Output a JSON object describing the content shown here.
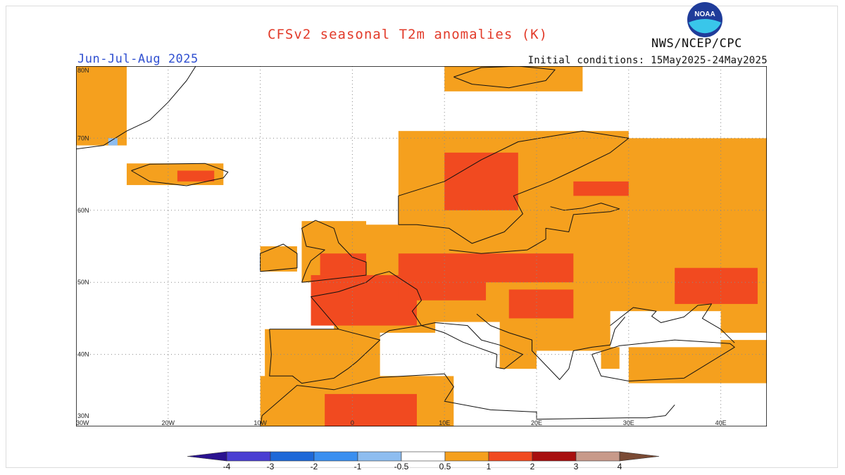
{
  "header": {
    "title": "CFSv2 seasonal T2m anomalies (K)",
    "season": "Jun-Jul-Aug 2025",
    "initial_conditions": "Initial conditions: 15May2025-24May2025",
    "agency": "NWS/NCEP/CPC",
    "logo_text": "NOAA"
  },
  "map": {
    "lon_range": [
      -30,
      45
    ],
    "lat_range": [
      30,
      80
    ],
    "lon_ticks": [
      {
        "value": -30,
        "label": "30W"
      },
      {
        "value": -20,
        "label": "20W"
      },
      {
        "value": -10,
        "label": "10W"
      },
      {
        "value": 0,
        "label": "0"
      },
      {
        "value": 10,
        "label": "10E"
      },
      {
        "value": 20,
        "label": "20E"
      },
      {
        "value": 30,
        "label": "30E"
      },
      {
        "value": 40,
        "label": "40E"
      }
    ],
    "lat_ticks": [
      {
        "value": 30,
        "label": "30N"
      },
      {
        "value": 40,
        "label": "40N"
      },
      {
        "value": 50,
        "label": "50N"
      },
      {
        "value": 60,
        "label": "60N"
      },
      {
        "value": 70,
        "label": "70N"
      },
      {
        "value": 80,
        "label": "80N"
      }
    ],
    "colors": {
      "c05": "#f5a01e",
      "c1": "#f14a20",
      "c2": "#a80f0f",
      "neg05": "#8ebdf0",
      "coast": "#111111",
      "grid": "#8a8a8a"
    },
    "regions_0_5_to_1K": [
      {
        "name": "Greenland",
        "lon": [
          -30,
          -24.5
        ],
        "lat": [
          69,
          80
        ]
      },
      {
        "name": "Iceland",
        "lon": [
          -24.5,
          -14
        ],
        "lat": [
          63.5,
          66.5
        ]
      },
      {
        "name": "Ireland",
        "lon": [
          -10,
          -6
        ],
        "lat": [
          51.5,
          55
        ]
      },
      {
        "name": "Great Britain",
        "lon": [
          -5.5,
          1.5
        ],
        "lat": [
          50,
          58.5
        ]
      },
      {
        "name": "Iberia",
        "lon": [
          -9.5,
          3
        ],
        "lat": [
          36,
          43.5
        ]
      },
      {
        "name": "Central Europe",
        "lon": [
          -2,
          45
        ],
        "lat": [
          43,
          58
        ]
      },
      {
        "name": "Scandinavia",
        "lon": [
          5,
          30
        ],
        "lat": [
          55,
          71
        ]
      },
      {
        "name": "Finland",
        "lon": [
          21,
          32
        ],
        "lat": [
          60,
          70
        ]
      },
      {
        "name": "Western Russia",
        "lon": [
          30,
          45
        ],
        "lat": [
          44,
          70
        ]
      },
      {
        "name": "Balkans",
        "lon": [
          13,
          29
        ],
        "lat": [
          38,
          46
        ]
      },
      {
        "name": "North Africa",
        "lon": [
          -10,
          11
        ],
        "lat": [
          30,
          37
        ]
      },
      {
        "name": "Turkey East",
        "lon": [
          30,
          45
        ],
        "lat": [
          36,
          42
        ]
      },
      {
        "name": "Svalbard",
        "lon": [
          10,
          25
        ],
        "lat": [
          76.5,
          80
        ]
      }
    ],
    "regions_1_to_2K": [
      {
        "name": "France",
        "lon": [
          -4.5,
          7
        ],
        "lat": [
          44,
          51
        ]
      },
      {
        "name": "Germany",
        "lon": [
          5,
          14.5
        ],
        "lat": [
          47.5,
          54
        ]
      },
      {
        "name": "Poland",
        "lon": [
          14,
          24
        ],
        "lat": [
          50,
          54
        ]
      },
      {
        "name": "Hungary",
        "lon": [
          17,
          24
        ],
        "lat": [
          45,
          49
        ]
      },
      {
        "name": "Ukraine East",
        "lon": [
          35,
          44
        ],
        "lat": [
          47,
          52
        ]
      },
      {
        "name": "Norway-Sweden",
        "lon": [
          10,
          18
        ],
        "lat": [
          60,
          68
        ]
      },
      {
        "name": "Finland North",
        "lon": [
          24,
          30
        ],
        "lat": [
          62,
          64
        ]
      },
      {
        "name": "Morocco-Algeria",
        "lon": [
          -3,
          7
        ],
        "lat": [
          30,
          34.5
        ]
      },
      {
        "name": "England",
        "lon": [
          -3.5,
          1.5
        ],
        "lat": [
          51,
          54
        ]
      },
      {
        "name": "Iceland South",
        "lon": [
          -19,
          -15
        ],
        "lat": [
          64,
          65.5
        ]
      }
    ],
    "white_areas_below_0_5K": [
      {
        "name": "Italy",
        "lon": [
          9,
          16
        ],
        "lat": [
          37,
          44.5
        ]
      },
      {
        "name": "Greece",
        "lon": [
          20,
          27
        ],
        "lat": [
          35,
          40.5
        ]
      },
      {
        "name": "Black Sea region",
        "lon": [
          28,
          40
        ],
        "lat": [
          41,
          46
        ]
      }
    ],
    "negative_cells": [
      {
        "name": "Greenland coast",
        "lon": [
          -26.5,
          -25.5
        ],
        "lat": [
          69,
          70
        ]
      }
    ]
  },
  "legend": {
    "labels": [
      "-4",
      "-3",
      "-2",
      "-1",
      "-0.5",
      "0.5",
      "1",
      "2",
      "3",
      "4"
    ],
    "bins": [
      {
        "range": "<-4",
        "color": "#2a1290"
      },
      {
        "range": "-4 to -3",
        "color": "#4a3ed2"
      },
      {
        "range": "-3 to -2",
        "color": "#1e68d8"
      },
      {
        "range": "-2 to -1",
        "color": "#3a8ff0"
      },
      {
        "range": "-1 to -0.5",
        "color": "#8ebdf0"
      },
      {
        "range": "-0.5 to 0.5",
        "color": "#ffffff"
      },
      {
        "range": "0.5 to 1",
        "color": "#f5a01e"
      },
      {
        "range": "1 to 2",
        "color": "#f14a20"
      },
      {
        "range": "2 to 3",
        "color": "#a80f0f"
      },
      {
        "range": "3 to 4",
        "color": "#c89a8a"
      },
      {
        "range": ">4",
        "color": "#7a4a34"
      }
    ]
  }
}
